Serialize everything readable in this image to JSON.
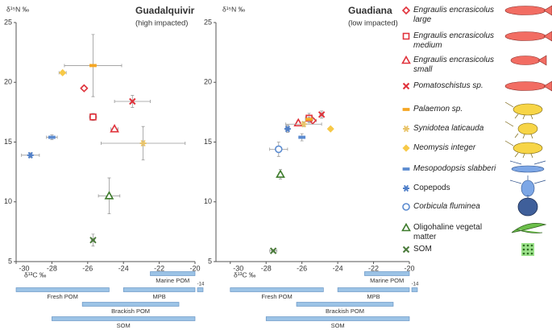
{
  "legend": [
    {
      "name": "Engraulis encrasicolus large",
      "marker": "diamond",
      "color": "#e0313a",
      "italic": true
    },
    {
      "name": "Engraulis encrasicolus medium",
      "marker": "square",
      "color": "#e0313a",
      "italic": true
    },
    {
      "name": "Engraulis encrasicolus small",
      "marker": "triangle",
      "color": "#e0313a",
      "italic": true
    },
    {
      "name": "Pomatoschistus sp.",
      "marker": "x",
      "color": "#e0313a",
      "italic": true
    },
    {
      "name": "Palaemon sp.",
      "marker": "dash",
      "color": "#f5a623",
      "italic": true
    },
    {
      "name": "Synidotea laticauda",
      "marker": "asterisk",
      "color": "#e9c46a",
      "italic": true
    },
    {
      "name": "Neomysis integer",
      "marker": "diamond-filled",
      "color": "#f7c948",
      "italic": true
    },
    {
      "name": "Mesopodopsis slabberi",
      "marker": "dash",
      "color": "#5b8bd0",
      "italic": true
    },
    {
      "name": "Copepods",
      "marker": "asterisk",
      "color": "#4f7fc9",
      "italic": false
    },
    {
      "name": "Corbicula fluminea",
      "marker": "circle",
      "color": "#5b8bd0",
      "italic": true
    },
    {
      "name": "Oligohaline vegetal matter",
      "marker": "triangle",
      "color": "#3c7a2a",
      "italic": false
    },
    {
      "name": "SOM",
      "marker": "x",
      "color": "#4a7a3a",
      "italic": false
    }
  ],
  "chart_data": [
    {
      "type": "scatter",
      "title": "Guadalquivir",
      "subtitle": "(high impacted)",
      "x_label": "δ¹³C ‰",
      "y_label": "δ¹⁵N ‰",
      "xlim": [
        -30,
        -20
      ],
      "ylim": [
        5,
        25
      ],
      "xticks": [
        -30,
        -28,
        -26,
        -24,
        -22,
        -20
      ],
      "yticks": [
        5,
        10,
        15,
        20,
        25
      ],
      "series": [
        {
          "x": -26.2,
          "y": 19.5,
          "xerr": 0.15,
          "yerr": 0.2
        },
        {
          "x": -25.7,
          "y": 17.1,
          "xerr": 0.2,
          "yerr": 0.3
        },
        {
          "x": -24.5,
          "y": 16.1,
          "xerr": 0.2,
          "yerr": 0.1
        },
        {
          "x": -23.5,
          "y": 18.4,
          "xerr": 1.0,
          "yerr": 0.5
        },
        {
          "x": -25.7,
          "y": 21.4,
          "xerr": 1.6,
          "yerr": 2.6
        },
        {
          "x": -22.9,
          "y": 14.9,
          "xerr": 2.35,
          "yerr": 1.4
        },
        {
          "x": -27.4,
          "y": 20.8,
          "xerr": 0.2,
          "yerr": 0.15
        },
        {
          "x": -28.0,
          "y": 15.4,
          "xerr": 0.3,
          "yerr": 0.2
        },
        {
          "x": -29.2,
          "y": 13.9,
          "xerr": 0.5,
          "yerr": 0.2
        },
        {
          "x": null,
          "y": null,
          "xerr": null,
          "yerr": null
        },
        {
          "x": -24.8,
          "y": 10.5,
          "xerr": 0.6,
          "yerr": 1.5
        },
        {
          "x": -25.7,
          "y": 6.8,
          "xerr": 0.1,
          "yerr": 0.5
        }
      ],
      "ranges": [
        {
          "name": "Marine POM",
          "start": -22.5,
          "end": -20
        },
        {
          "name": "Fresh POM",
          "start": -30,
          "end": -24.8
        },
        {
          "name": "MPB",
          "start": -24,
          "end": -14
        },
        {
          "name": "Brackish POM",
          "start": -26.3,
          "end": -20.9
        },
        {
          "name": "SOM",
          "start": -28,
          "end": -20
        }
      ]
    },
    {
      "type": "scatter",
      "title": "Guadiana",
      "subtitle": "(low impacted)",
      "x_label": "δ¹³C ‰",
      "y_label": "δ¹⁵N ‰",
      "xlim": [
        -30.8,
        -20
      ],
      "ylim": [
        5,
        25
      ],
      "xticks": [
        -30,
        -28,
        -26,
        -24,
        -22,
        -20
      ],
      "yticks": [
        5,
        10,
        15,
        20,
        25
      ],
      "series": [
        {
          "x": -25.4,
          "y": 16.8,
          "xerr": 0.2,
          "yerr": 0.2
        },
        {
          "x": -25.6,
          "y": 17.0,
          "xerr": 0.2,
          "yerr": 0.4
        },
        {
          "x": -26.2,
          "y": 16.6,
          "xerr": 0.1,
          "yerr": 0.2
        },
        {
          "x": -24.9,
          "y": 17.3,
          "xerr": 0.1,
          "yerr": 0.3
        },
        {
          "x": -25.6,
          "y": 16.9,
          "xerr": 0.2,
          "yerr": 0.2
        },
        {
          "x": -25.9,
          "y": 16.5,
          "xerr": 1.0,
          "yerr": 0.2
        },
        {
          "x": -24.4,
          "y": 16.1,
          "xerr": 0.1,
          "yerr": 0.1
        },
        {
          "x": -26.0,
          "y": 15.4,
          "xerr": 0.1,
          "yerr": 0.3
        },
        {
          "x": -26.8,
          "y": 16.1,
          "xerr": 0.1,
          "yerr": 0.3
        },
        {
          "x": -27.3,
          "y": 14.4,
          "xerr": 0.5,
          "yerr": 0.6
        },
        {
          "x": -27.2,
          "y": 12.3,
          "xerr": 0.1,
          "yerr": 0.4
        },
        {
          "x": -27.6,
          "y": 5.9,
          "xerr": 0.2,
          "yerr": 0.1
        }
      ],
      "ranges": [
        {
          "name": "Marine POM",
          "start": -22.5,
          "end": -20
        },
        {
          "name": "Fresh POM",
          "start": -30,
          "end": -24.8
        },
        {
          "name": "MPB",
          "start": -24,
          "end": -14
        },
        {
          "name": "Brackish POM",
          "start": -26.3,
          "end": -20.9
        },
        {
          "name": "SOM",
          "start": -28,
          "end": -20
        }
      ]
    }
  ]
}
